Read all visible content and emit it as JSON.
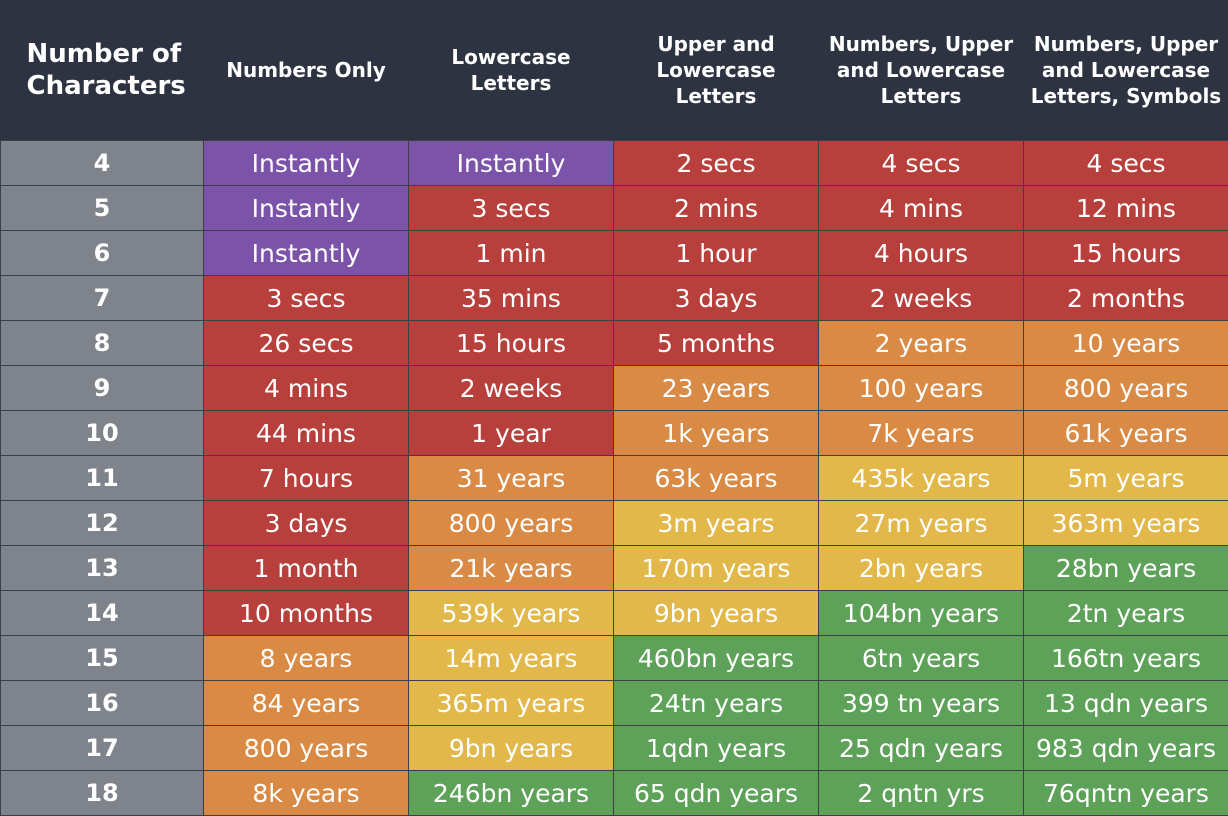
{
  "table": {
    "header": [
      "Number of Characters",
      "Numbers Only",
      "Lowercase Letters",
      "Upper and Lowercase Letters",
      "Numbers, Upper and Lowercase Letters",
      "Numbers, Upper and Lowercase Letters, Symbols"
    ],
    "rows": [
      [
        "4",
        "Instantly",
        "Instantly",
        "2 secs",
        "4 secs",
        "4 secs"
      ],
      [
        "5",
        "Instantly",
        "3 secs",
        "2 mins",
        "4 mins",
        "12 mins"
      ],
      [
        "6",
        "Instantly",
        "1 min",
        "1 hour",
        "4 hours",
        "15 hours"
      ],
      [
        "7",
        "3 secs",
        "35 mins",
        "3 days",
        "2 weeks",
        "2 months"
      ],
      [
        "8",
        "26 secs",
        "15 hours",
        "5 months",
        "2 years",
        "10 years"
      ],
      [
        "9",
        "4 mins",
        "2 weeks",
        "23 years",
        "100 years",
        "800 years"
      ],
      [
        "10",
        "44 mins",
        "1 year",
        "1k years",
        "7k years",
        "61k years"
      ],
      [
        "11",
        "7 hours",
        "31 years",
        "63k years",
        "435k years",
        "5m years"
      ],
      [
        "12",
        "3 days",
        "800 years",
        "3m years",
        "27m years",
        "363m years"
      ],
      [
        "13",
        "1 month",
        "21k years",
        "170m years",
        "2bn years",
        "28bn years"
      ],
      [
        "14",
        "10 months",
        "539k years",
        "9bn years",
        "104bn years",
        "2tn years"
      ],
      [
        "15",
        "8 years",
        "14m years",
        "460bn years",
        "6tn years",
        "166tn years"
      ],
      [
        "16",
        "84 years",
        "365m years",
        "24tn years",
        "399 tn years",
        "13 qdn years"
      ],
      [
        "17",
        "800 years",
        "9bn years",
        "1qdn years",
        "25 qdn years",
        "983 qdn years"
      ],
      [
        "18",
        "8k years",
        "246bn years",
        "65 qdn years",
        "2 qntn yrs",
        "76qntn years"
      ]
    ]
  }
}
